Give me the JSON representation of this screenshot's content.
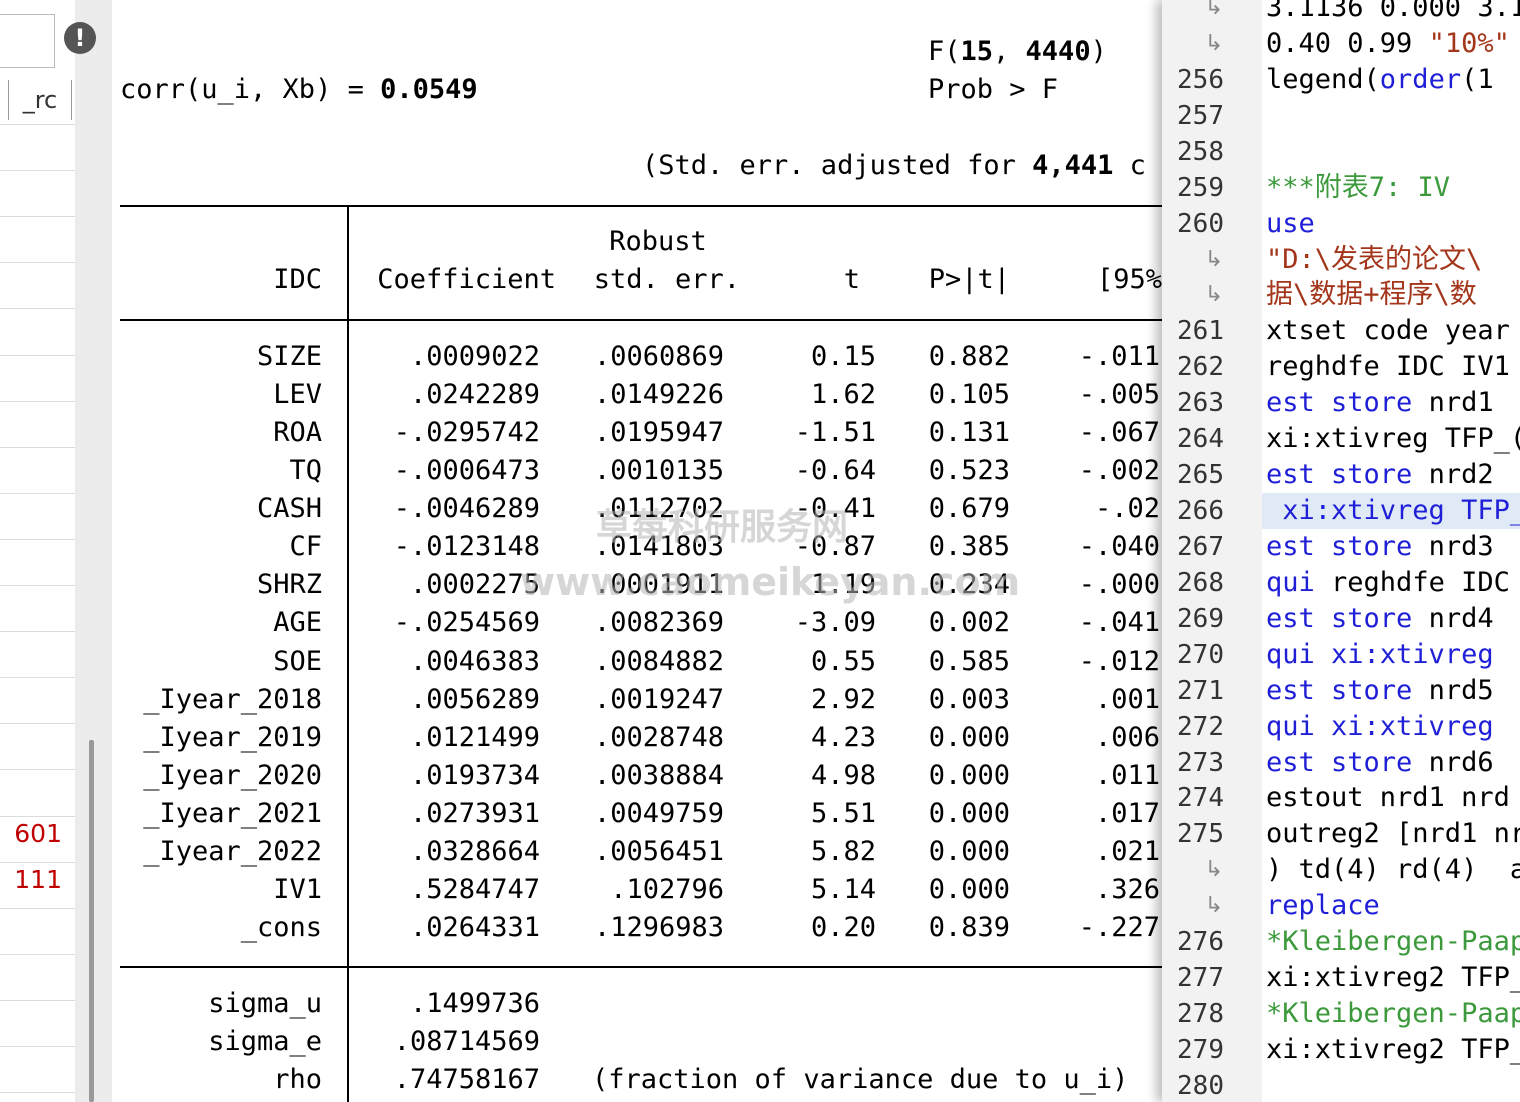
{
  "left_panel": {
    "column_header": "_rc",
    "values": [
      "601",
      "111"
    ]
  },
  "results": {
    "corr_label": "corr(u_i, Xb) = ",
    "corr_value": "0.0549",
    "f_test": {
      "prefix": "F(",
      "df1": "15",
      "sep": ", ",
      "df2": "4440",
      "suffix": ")"
    },
    "prob_label": "Prob > F",
    "stderr_note": {
      "text": "(Std. err. adjusted for ",
      "clusters": "4,441",
      "rest": " c"
    },
    "table": {
      "depvar": "IDC",
      "headers": {
        "coef": "Coefficient",
        "robust": "Robust",
        "se": "std. err.",
        "t": "t",
        "p": "P>|t|",
        "ci": "[95%"
      },
      "rows": [
        [
          "SIZE",
          ".0009022",
          ".0060869",
          "0.15",
          "0.882",
          "-.011"
        ],
        [
          "LEV",
          ".0242289",
          ".0149226",
          "1.62",
          "0.105",
          "-.005"
        ],
        [
          "ROA",
          "-.0295742",
          ".0195947",
          "-1.51",
          "0.131",
          "-.067"
        ],
        [
          "TQ",
          "-.0006473",
          ".0010135",
          "-0.64",
          "0.523",
          "-.002"
        ],
        [
          "CASH",
          "-.0046289",
          ".0112702",
          "-0.41",
          "0.679",
          "-.02"
        ],
        [
          "CF",
          "-.0123148",
          ".0141803",
          "-0.87",
          "0.385",
          "-.040"
        ],
        [
          "SHRZ",
          ".0002275",
          ".0001911",
          "1.19",
          "0.234",
          "-.000"
        ],
        [
          "AGE",
          "-.0254569",
          ".0082369",
          "-3.09",
          "0.002",
          "-.041"
        ],
        [
          "SOE",
          ".0046383",
          ".0084882",
          "0.55",
          "0.585",
          "-.012"
        ],
        [
          "_Iyear_2018",
          ".0056289",
          ".0019247",
          "2.92",
          "0.003",
          ".001"
        ],
        [
          "_Iyear_2019",
          ".0121499",
          ".0028748",
          "4.23",
          "0.000",
          ".006"
        ],
        [
          "_Iyear_2020",
          ".0193734",
          ".0038884",
          "4.98",
          "0.000",
          ".011"
        ],
        [
          "_Iyear_2021",
          ".0273931",
          ".0049759",
          "5.51",
          "0.000",
          ".017"
        ],
        [
          "_Iyear_2022",
          ".0328664",
          ".0056451",
          "5.82",
          "0.000",
          ".021"
        ],
        [
          "IV1",
          ".5284747",
          ".102796",
          "5.14",
          "0.000",
          ".326"
        ],
        [
          "_cons",
          ".0264331",
          ".1296983",
          "0.20",
          "0.839",
          "-.227"
        ]
      ],
      "sigma_rows": [
        [
          "sigma_u",
          ".1499736"
        ],
        [
          "sigma_e",
          ".08714569"
        ],
        [
          "rho",
          ".74758167"
        ]
      ],
      "rho_note": "(fraction of variance due to u_i)"
    }
  },
  "watermark": [
    "草莓科研服务网",
    "www.caomeikeyan.com"
  ],
  "editor": {
    "lines": [
      {
        "number": null,
        "tokens": [
          {
            "text": "3.1136 0.000 3.1",
            "color": "#000000"
          }
        ]
      },
      {
        "number": null,
        "tokens": [
          {
            "text": "0.40 0.99 ",
            "color": "#000000"
          },
          {
            "text": "\"10%\"",
            "color": "#a3361a"
          }
        ]
      },
      {
        "number": 256,
        "tokens": [
          {
            "text": "legend(",
            "color": "#000000"
          },
          {
            "text": "order",
            "color": "#1f1fd8"
          },
          {
            "text": "(1",
            "color": "#000000"
          }
        ]
      },
      {
        "number": 257
      },
      {
        "number": 258
      },
      {
        "number": 259,
        "tokens": [
          {
            "text": "***附表7: IV",
            "color": "#3c9a3c"
          }
        ]
      },
      {
        "number": 260,
        "tokens": [
          {
            "text": "use",
            "color": "#1f1fd8"
          }
        ]
      },
      {
        "number": null,
        "tokens": [
          {
            "text": "\"D:\\发表的论文\\",
            "color": "#a3361a"
          }
        ]
      },
      {
        "number": null,
        "tokens": [
          {
            "text": "据\\数据+程序\\数",
            "color": "#a3361a"
          }
        ]
      },
      {
        "number": 261,
        "tokens": [
          {
            "text": "xtset code year",
            "color": "#000000"
          }
        ]
      },
      {
        "number": 262,
        "tokens": [
          {
            "text": "reghdfe IDC IV1",
            "color": "#000000"
          }
        ]
      },
      {
        "number": 263,
        "tokens": [
          {
            "text": "est store",
            "color": "#1f1fd8"
          },
          {
            "text": " nrd1",
            "color": "#000000"
          }
        ]
      },
      {
        "number": 264,
        "tokens": [
          {
            "text": "xi:xtivreg TFP_(",
            "color": "#000000"
          }
        ]
      },
      {
        "number": 265,
        "tokens": [
          {
            "text": "est store",
            "color": "#1f1fd8"
          },
          {
            "text": " nrd2",
            "color": "#000000"
          }
        ]
      },
      {
        "number": 266,
        "tokens": [
          {
            "text": " xi:xtivreg TFP_",
            "color": "#1f1fd8"
          }
        ]
      },
      {
        "number": 267,
        "tokens": [
          {
            "text": "est store",
            "color": "#1f1fd8"
          },
          {
            "text": " nrd3",
            "color": "#000000"
          }
        ]
      },
      {
        "number": 268,
        "tokens": [
          {
            "text": "qui",
            "color": "#1f1fd8"
          },
          {
            "text": " reghdfe IDC",
            "color": "#000000"
          }
        ]
      },
      {
        "number": 269,
        "tokens": [
          {
            "text": "est store",
            "color": "#1f1fd8"
          },
          {
            "text": " nrd4",
            "color": "#000000"
          }
        ]
      },
      {
        "number": 270,
        "tokens": [
          {
            "text": "qui xi:xtivreg",
            "color": "#1f1fd8"
          }
        ]
      },
      {
        "number": 271,
        "tokens": [
          {
            "text": "est store",
            "color": "#1f1fd8"
          },
          {
            "text": " nrd5",
            "color": "#000000"
          }
        ]
      },
      {
        "number": 272,
        "tokens": [
          {
            "text": "qui xi:xtivreg",
            "color": "#1f1fd8"
          }
        ]
      },
      {
        "number": 273,
        "tokens": [
          {
            "text": "est store",
            "color": "#1f1fd8"
          },
          {
            "text": " nrd6",
            "color": "#000000"
          }
        ]
      },
      {
        "number": 274,
        "tokens": [
          {
            "text": "estout nrd1 nrd",
            "color": "#000000"
          }
        ]
      },
      {
        "number": 275,
        "tokens": [
          {
            "text": "outreg2 [nrd1 nr",
            "color": "#000000"
          }
        ]
      },
      {
        "number": null,
        "tokens": [
          {
            "text": ") td(4) rd(4)  a",
            "color": "#000000"
          }
        ]
      },
      {
        "number": null,
        "tokens": [
          {
            "text": "replace",
            "color": "#1f1fd8"
          }
        ]
      },
      {
        "number": 276,
        "tokens": [
          {
            "text": "*Kleibergen-Paap",
            "color": "#3c9a3c"
          }
        ]
      },
      {
        "number": 277,
        "tokens": [
          {
            "text": "xi:xtivreg2 TFP_",
            "color": "#000000"
          }
        ]
      },
      {
        "number": 278,
        "tokens": [
          {
            "text": "*Kleibergen-Paap",
            "color": "#3c9a3c"
          }
        ]
      },
      {
        "number": 279,
        "tokens": [
          {
            "text": "xi:xtivreg2 TFP_",
            "color": "#000000"
          }
        ]
      },
      {
        "number": 280
      }
    ],
    "highlight_line": 266
  }
}
